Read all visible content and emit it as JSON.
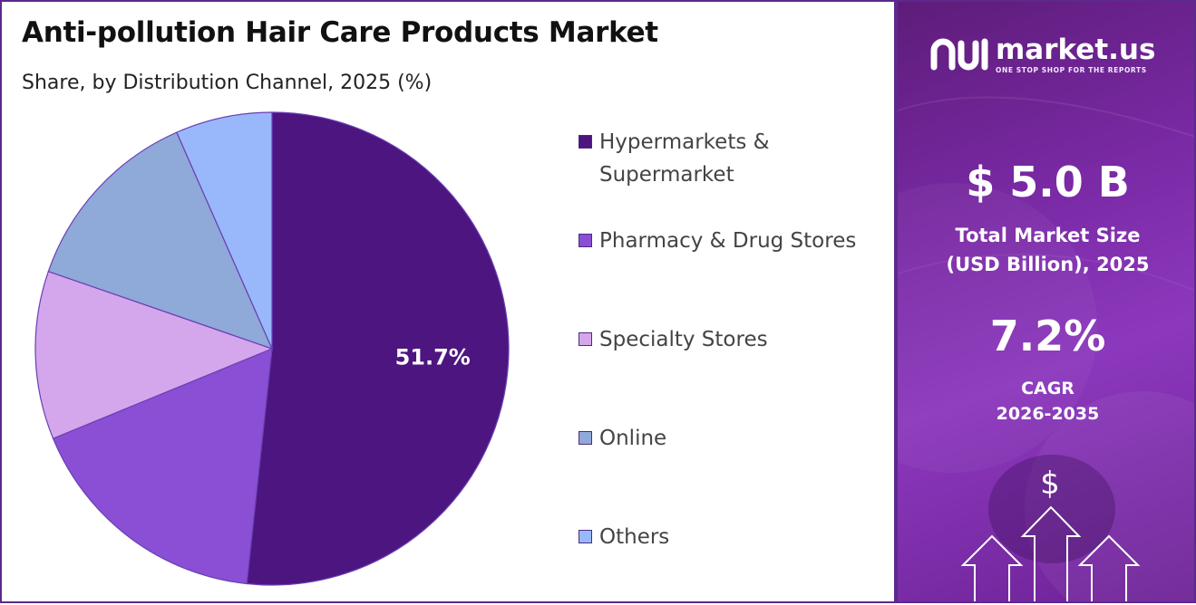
{
  "header": {
    "title": "Anti-pollution Hair Care Products Market",
    "subtitle": "Share, by Distribution Channel, 2025 (%)"
  },
  "chart_data": {
    "type": "pie",
    "title": "Anti-pollution Hair Care Products Market",
    "subtitle": "Share, by Distribution Channel, 2025 (%)",
    "categories": [
      "Hypermarkets & Supermarket",
      "Pharmacy & Drug Stores",
      "Specialty Stores",
      "Online",
      "Others"
    ],
    "values": [
      51.7,
      17.1,
      11.5,
      13.1,
      6.6
    ],
    "data_labels": [
      "51.7%"
    ],
    "colors": [
      "#4d1580",
      "#8a4fd4",
      "#d4a6ec",
      "#8fa9d9",
      "#99b8fb"
    ],
    "legend_position": "right"
  },
  "legend": {
    "items": [
      {
        "label_line1": "Hypermarkets &",
        "label_line2": "Supermarket",
        "color": "#4d1580"
      },
      {
        "label_line1": "Pharmacy & Drug Stores",
        "label_line2": "",
        "color": "#8a4fd4"
      },
      {
        "label_line1": "Specialty Stores",
        "label_line2": "",
        "color": "#d4a6ec"
      },
      {
        "label_line1": "Online",
        "label_line2": "",
        "color": "#8fa9d9"
      },
      {
        "label_line1": "Others",
        "label_line2": "",
        "color": "#99b8fb"
      }
    ]
  },
  "sidebar": {
    "brand_name": "market.us",
    "brand_tagline": "ONE STOP SHOP FOR THE REPORTS",
    "market_size_value": "$ 5.0 B",
    "market_size_label_line1": "Total Market Size",
    "market_size_label_line2": "(USD Billion), 2025",
    "cagr_value": "7.2%",
    "cagr_label": "CAGR",
    "cagr_period": "2026-2035",
    "dollar_symbol": "$",
    "icons": [
      "market-us-logo-icon",
      "dollar-icon",
      "up-arrow-icon"
    ]
  },
  "colors": {
    "frame_border": "#5b2a8c",
    "panel_gradient_start": "#5e1c7a",
    "panel_gradient_end": "#8c38bd"
  }
}
